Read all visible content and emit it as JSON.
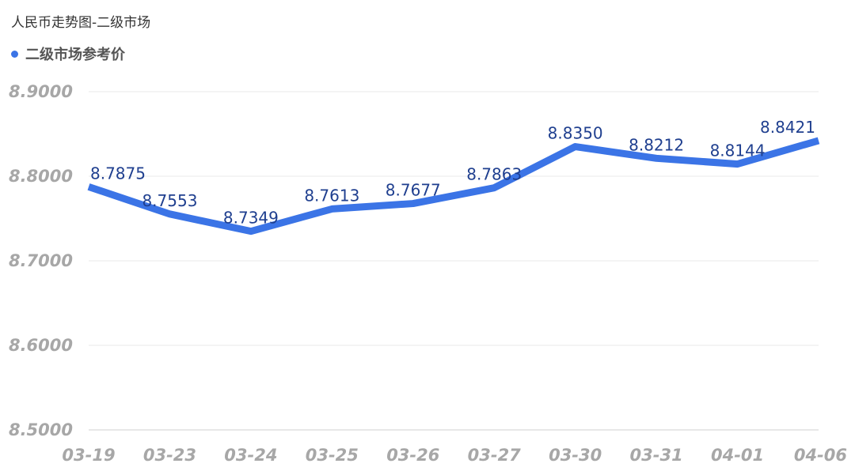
{
  "chart_data": {
    "type": "line",
    "title": "人民币走势图-二级市场",
    "legend": "top-left",
    "categories": [
      "03-19",
      "03-23",
      "03-24",
      "03-25",
      "03-26",
      "03-27",
      "03-30",
      "03-31",
      "04-01",
      "04-06"
    ],
    "series": [
      {
        "name": "二级市场参考价",
        "values": [
          8.7875,
          8.7553,
          8.7349,
          8.7613,
          8.7677,
          8.7863,
          8.835,
          8.8212,
          8.8144,
          8.8421
        ],
        "labels": [
          "8.7875",
          "8.7553",
          "8.7349",
          "8.7613",
          "8.7677",
          "8.7863",
          "8.8350",
          "8.8212",
          "8.8144",
          "8.8421"
        ]
      }
    ],
    "yticks": [
      "8.5000",
      "8.6000",
      "8.7000",
      "8.8000",
      "8.9000"
    ],
    "ylim": [
      8.5,
      8.9
    ],
    "grid": true,
    "line_color": "#3b74e6",
    "label_color": "#1f3f8f"
  }
}
